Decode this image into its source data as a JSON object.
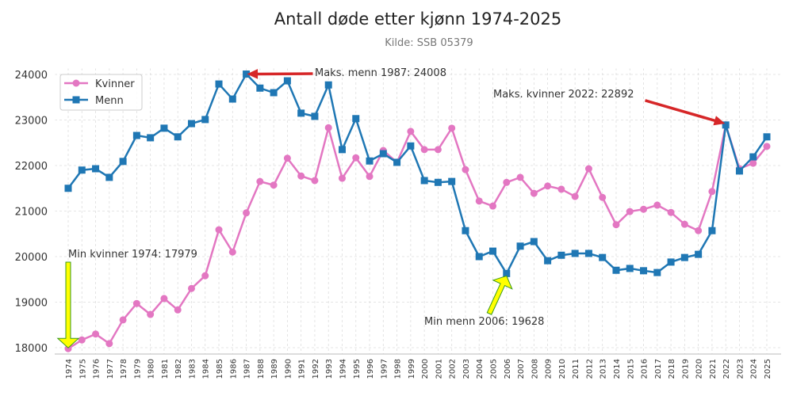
{
  "chart_data": {
    "type": "line",
    "title": "Antall døde etter kjønn 1974-2025",
    "subtitle": "Kilde: SSB 05379",
    "xlabel": "",
    "ylabel": "",
    "ylim": [
      17850,
      24150
    ],
    "yticks": [
      18000,
      19000,
      20000,
      21000,
      22000,
      23000,
      24000
    ],
    "grid": true,
    "legend_position": "top-left",
    "x": [
      1974,
      1975,
      1976,
      1977,
      1978,
      1979,
      1980,
      1981,
      1982,
      1983,
      1984,
      1985,
      1986,
      1987,
      1988,
      1989,
      1990,
      1991,
      1992,
      1993,
      1994,
      1995,
      1996,
      1997,
      1998,
      1999,
      2000,
      2001,
      2002,
      2003,
      2004,
      2005,
      2006,
      2007,
      2008,
      2009,
      2010,
      2011,
      2012,
      2013,
      2014,
      2015,
      2016,
      2017,
      2018,
      2019,
      2020,
      2021,
      2022,
      2023,
      2024,
      2025
    ],
    "series": [
      {
        "name": "Kvinner",
        "color": "#e377c2",
        "marker": "circle",
        "values": [
          17979,
          18170,
          18300,
          18090,
          18610,
          18970,
          18730,
          19080,
          18830,
          19300,
          19580,
          20590,
          20100,
          20960,
          21650,
          21570,
          22160,
          21770,
          21670,
          22830,
          21720,
          22170,
          21760,
          22330,
          22070,
          22750,
          22350,
          22350,
          22820,
          21910,
          21220,
          21110,
          21630,
          21740,
          21390,
          21550,
          21480,
          21320,
          21930,
          21300,
          20700,
          20990,
          21040,
          21130,
          20970,
          20710,
          20570,
          21430,
          22892,
          21930,
          22050,
          22420
        ]
      },
      {
        "name": "Menn",
        "color": "#1f77b4",
        "marker": "square",
        "values": [
          21500,
          21900,
          21930,
          21740,
          22090,
          22660,
          22610,
          22820,
          22630,
          22920,
          23010,
          23790,
          23460,
          24008,
          23700,
          23600,
          23860,
          23150,
          23080,
          23770,
          22350,
          23030,
          22100,
          22260,
          22070,
          22430,
          21670,
          21630,
          21650,
          20570,
          20000,
          20120,
          19628,
          20230,
          20330,
          19910,
          20030,
          20070,
          20070,
          19980,
          19700,
          19740,
          19690,
          19650,
          19880,
          19980,
          20050,
          20570,
          22890,
          21880,
          22190,
          22630
        ]
      }
    ],
    "annotations": [
      {
        "text": "Maks. menn 1987: 24008",
        "x": 1987,
        "y": 24008,
        "arrow_color": "#d62728"
      },
      {
        "text": "Maks. kvinner 2022: 22892",
        "x": 2022,
        "y": 22892,
        "arrow_color": "#d62728"
      },
      {
        "text": "Min kvinner 1974: 17979",
        "x": 1974,
        "y": 17979,
        "arrow_color": "#ffff00"
      },
      {
        "text": "Min menn 2006: 19628",
        "x": 2006,
        "y": 19628,
        "arrow_color": "#ffff00"
      }
    ]
  }
}
